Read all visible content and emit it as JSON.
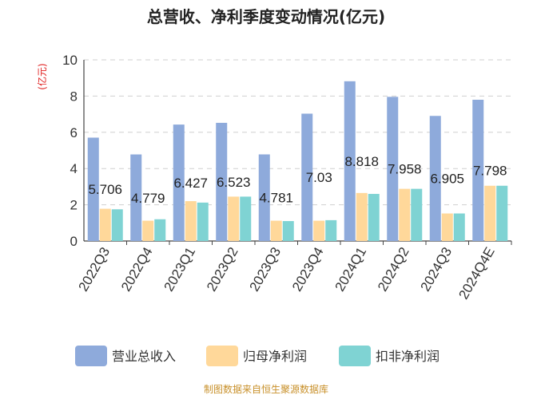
{
  "chart_data": {
    "type": "bar",
    "title": "总营收、净利季度变动情况(亿元)",
    "ylabel": "(亿元)",
    "xlabel": "",
    "ylim": [
      0,
      10
    ],
    "yticks": [
      0,
      2,
      4,
      6,
      8,
      10
    ],
    "grid": true,
    "categories": [
      "2022Q3",
      "2022Q4",
      "2023Q1",
      "2023Q2",
      "2023Q3",
      "2023Q4",
      "2024Q1",
      "2024Q2",
      "2024Q3",
      "2024Q4E"
    ],
    "series": [
      {
        "name": "营业总收入",
        "color": "#8eaadb",
        "values": [
          5.706,
          4.779,
          6.427,
          6.523,
          4.781,
          7.03,
          8.818,
          7.958,
          6.905,
          7.798
        ]
      },
      {
        "name": "归母净利润",
        "color": "#ffd89a",
        "values": [
          1.78,
          1.12,
          2.2,
          2.45,
          1.12,
          1.12,
          2.65,
          2.88,
          1.52,
          3.05
        ]
      },
      {
        "name": "扣非净利润",
        "color": "#7fd3d3",
        "values": [
          1.75,
          1.2,
          2.12,
          2.45,
          1.1,
          1.15,
          2.6,
          2.88,
          1.52,
          3.05
        ]
      }
    ],
    "data_labels": [
      "5.706",
      "4.779",
      "6.427",
      "6.523",
      "4.781",
      "7.03",
      "8.818",
      "7.958",
      "6.905",
      "7.798"
    ],
    "legend_position": "bottom"
  },
  "source_text": "制图数据来自恒生聚源数据库"
}
